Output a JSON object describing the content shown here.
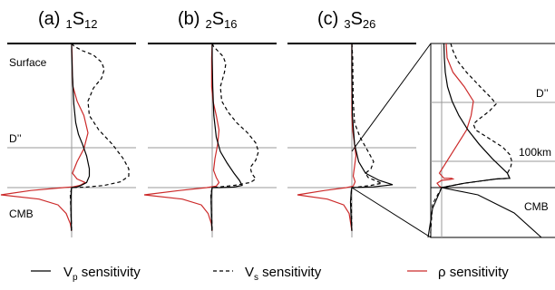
{
  "chart_data": {
    "type": "line",
    "panels": [
      {
        "id": "a",
        "letter": "(a)",
        "mode_pre": "1",
        "mode_main": "S",
        "mode_sub": "12",
        "series": {
          "vp": [
            [
              0,
              0
            ],
            [
              0,
              0.05
            ],
            [
              0.3,
              0.22
            ],
            [
              0.8,
              0.42
            ],
            [
              1.5,
              0.55
            ],
            [
              2.5,
              0.63
            ],
            [
              4.0,
              0.7
            ],
            [
              5.5,
              0.78
            ],
            [
              6.5,
              0.87
            ],
            [
              6.5,
              0.92
            ],
            [
              5.5,
              0.965
            ],
            [
              3.5,
              0.985
            ],
            [
              1.8,
              0.997
            ],
            [
              0.4,
              1.0
            ],
            [
              0,
              1.0
            ],
            [
              -0.1,
              1.01
            ],
            [
              -0.2,
              1.05
            ],
            [
              -0.3,
              1.12
            ],
            [
              -0.2,
              1.2
            ],
            [
              -0.1,
              1.3
            ]
          ],
          "vs": [
            [
              0,
              0
            ],
            [
              1,
              0.02
            ],
            [
              4,
              0.05
            ],
            [
              8,
              0.08
            ],
            [
              11,
              0.13
            ],
            [
              12,
              0.18
            ],
            [
              11,
              0.24
            ],
            [
              8,
              0.31
            ],
            [
              6,
              0.4
            ],
            [
              6.5,
              0.5
            ],
            [
              10,
              0.6
            ],
            [
              15,
              0.7
            ],
            [
              19,
              0.8
            ],
            [
              21,
              0.87
            ],
            [
              21,
              0.92
            ],
            [
              18,
              0.96
            ],
            [
              12,
              0.985
            ],
            [
              5,
              0.997
            ],
            [
              0,
              1.0
            ],
            [
              -0.5,
              1.05
            ],
            [
              -0.3,
              1.15
            ],
            [
              0,
              1.3
            ]
          ],
          "rho": [
            [
              0,
              0
            ],
            [
              0.2,
              0.1
            ],
            [
              0.2,
              0.2
            ],
            [
              0.5,
              0.3
            ],
            [
              2.0,
              0.4
            ],
            [
              4.5,
              0.5
            ],
            [
              6.0,
              0.62
            ],
            [
              4.5,
              0.73
            ],
            [
              2.0,
              0.82
            ],
            [
              0.3,
              0.9
            ],
            [
              2.0,
              0.94
            ],
            [
              5.0,
              0.965
            ],
            [
              3.0,
              0.985
            ],
            [
              0.5,
              0.995
            ],
            [
              -3,
              1.0
            ],
            [
              -15,
              1.02
            ],
            [
              -26,
              1.05
            ],
            [
              -12,
              1.08
            ],
            [
              -5,
              1.12
            ],
            [
              -2,
              1.18
            ],
            [
              -0.5,
              1.25
            ],
            [
              0,
              1.3
            ]
          ]
        }
      },
      {
        "id": "b",
        "letter": "(b)",
        "mode_pre": "2",
        "mode_main": "S",
        "mode_sub": "16",
        "series": {
          "vp": [
            [
              0,
              0
            ],
            [
              0,
              0.1
            ],
            [
              0.2,
              0.3
            ],
            [
              0.6,
              0.5
            ],
            [
              1.5,
              0.65
            ],
            [
              3.0,
              0.75
            ],
            [
              5.5,
              0.83
            ],
            [
              8.0,
              0.9
            ],
            [
              10.0,
              0.95
            ],
            [
              11.0,
              0.985
            ],
            [
              8.0,
              0.996
            ],
            [
              3.0,
              1.0
            ],
            [
              0,
              1.0
            ],
            [
              -0.2,
              1.02
            ],
            [
              -0.4,
              1.08
            ],
            [
              -0.3,
              1.18
            ],
            [
              -0.1,
              1.3
            ]
          ],
          "vs": [
            [
              0,
              0
            ],
            [
              0.5,
              0.02
            ],
            [
              2,
              0.05
            ],
            [
              4,
              0.09
            ],
            [
              5,
              0.14
            ],
            [
              4.5,
              0.2
            ],
            [
              3,
              0.3
            ],
            [
              3.5,
              0.4
            ],
            [
              6,
              0.48
            ],
            [
              9,
              0.55
            ],
            [
              13,
              0.62
            ],
            [
              16,
              0.69
            ],
            [
              17,
              0.75
            ],
            [
              16,
              0.81
            ],
            [
              14,
              0.86
            ],
            [
              14.5,
              0.9
            ],
            [
              16,
              0.94
            ],
            [
              14,
              0.965
            ],
            [
              8,
              0.985
            ],
            [
              2,
              0.997
            ],
            [
              0,
              1.0
            ],
            [
              -0.5,
              1.05
            ],
            [
              -0.3,
              1.15
            ],
            [
              0,
              1.3
            ]
          ],
          "rho": [
            [
              0,
              0
            ],
            [
              -0.2,
              0.1
            ],
            [
              -0.2,
              0.3
            ],
            [
              0.3,
              0.4
            ],
            [
              1.5,
              0.5
            ],
            [
              2.5,
              0.6
            ],
            [
              2.0,
              0.7
            ],
            [
              1.0,
              0.8
            ],
            [
              0.5,
              0.88
            ],
            [
              1.5,
              0.93
            ],
            [
              2.5,
              0.965
            ],
            [
              1.5,
              0.99
            ],
            [
              -2,
              1.0
            ],
            [
              -12,
              1.02
            ],
            [
              -25,
              1.05
            ],
            [
              -11,
              1.08
            ],
            [
              -4,
              1.12
            ],
            [
              -1.5,
              1.18
            ],
            [
              -0.3,
              1.25
            ],
            [
              0,
              1.3
            ]
          ]
        }
      },
      {
        "id": "c",
        "letter": "(c)",
        "mode_pre": "3",
        "mode_main": "S",
        "mode_sub": "26",
        "series": {
          "vp": [
            [
              0,
              0
            ],
            [
              0,
              0.2
            ],
            [
              0.2,
              0.5
            ],
            [
              1.0,
              0.7
            ],
            [
              2.5,
              0.82
            ],
            [
              5.0,
              0.9
            ],
            [
              10.0,
              0.95
            ],
            [
              15.0,
              0.98
            ],
            [
              8.0,
              0.995
            ],
            [
              0,
              1.0
            ],
            [
              -0.2,
              1.02
            ],
            [
              -0.5,
              1.1
            ],
            [
              -0.3,
              1.2
            ],
            [
              0,
              1.3
            ]
          ],
          "vs": [
            [
              0,
              0
            ],
            [
              0.3,
              0.1
            ],
            [
              0.5,
              0.4
            ],
            [
              1,
              0.55
            ],
            [
              3,
              0.65
            ],
            [
              6,
              0.75
            ],
            [
              8,
              0.82
            ],
            [
              7,
              0.87
            ],
            [
              5,
              0.9
            ],
            [
              6,
              0.93
            ],
            [
              9,
              0.955
            ],
            [
              11,
              0.97
            ],
            [
              7,
              0.985
            ],
            [
              2,
              0.997
            ],
            [
              0,
              1.0
            ],
            [
              -0.3,
              1.05
            ],
            [
              0,
              1.3
            ]
          ],
          "rho": [
            [
              0,
              0
            ],
            [
              0,
              0.5
            ],
            [
              0.3,
              0.6
            ],
            [
              1.0,
              0.7
            ],
            [
              1.5,
              0.78
            ],
            [
              1.0,
              0.85
            ],
            [
              0.5,
              0.92
            ],
            [
              1.2,
              0.96
            ],
            [
              0.5,
              0.99
            ],
            [
              -2,
              1.0
            ],
            [
              -10,
              1.02
            ],
            [
              -20,
              1.05
            ],
            [
              -9,
              1.08
            ],
            [
              -3,
              1.12
            ],
            [
              -1,
              1.18
            ],
            [
              0,
              1.3
            ]
          ]
        }
      }
    ],
    "zoom": {
      "series": {
        "vp": [
          [
            0.5,
            0.0
          ],
          [
            0.6,
            0.1
          ],
          [
            0.8,
            0.2
          ],
          [
            1.3,
            0.3
          ],
          [
            2.3,
            0.4
          ],
          [
            3.8,
            0.5
          ],
          [
            5.8,
            0.6
          ],
          [
            8.3,
            0.7
          ],
          [
            11.2,
            0.8
          ],
          [
            14.5,
            0.9
          ],
          [
            15,
            0.935
          ],
          [
            12,
            0.94
          ],
          [
            8.5,
            0.955
          ],
          [
            5,
            0.97
          ],
          [
            2.5,
            0.985
          ],
          [
            0.8,
            0.995
          ],
          [
            0,
            1.0
          ]
        ],
        "vs": [
          [
            2.0,
            0.0
          ],
          [
            2.5,
            0.05
          ],
          [
            3.5,
            0.12
          ],
          [
            5.5,
            0.2
          ],
          [
            8.5,
            0.3
          ],
          [
            11.0,
            0.38
          ],
          [
            12.0,
            0.42
          ],
          [
            10.5,
            0.47
          ],
          [
            8.0,
            0.53
          ],
          [
            7.0,
            0.56
          ],
          [
            7.5,
            0.6
          ],
          [
            10.5,
            0.66
          ],
          [
            13.5,
            0.72
          ],
          [
            15.0,
            0.77
          ],
          [
            15.5,
            0.82
          ],
          [
            15.2,
            0.86
          ],
          [
            14.5,
            0.9
          ],
          [
            15,
            0.935
          ],
          [
            12,
            0.94
          ],
          [
            8.5,
            0.955
          ],
          [
            5,
            0.97
          ],
          [
            2.5,
            0.985
          ],
          [
            0.8,
            0.995
          ],
          [
            0,
            1.0
          ]
        ],
        "rho": [
          [
            1.0,
            0.0
          ],
          [
            1.2,
            0.1
          ],
          [
            2.5,
            0.2
          ],
          [
            5.0,
            0.3
          ],
          [
            7.0,
            0.4
          ],
          [
            6.5,
            0.5
          ],
          [
            5.5,
            0.6
          ],
          [
            3.5,
            0.7
          ],
          [
            1.5,
            0.8
          ],
          [
            0.5,
            0.85
          ],
          [
            -0.5,
            0.9
          ],
          [
            0.5,
            0.935
          ],
          [
            2.2,
            0.935
          ],
          [
            2.5,
            0.94
          ],
          [
            1.5,
            0.945
          ],
          [
            0,
            0.95
          ],
          [
            -1,
            0.97
          ],
          [
            -0.5,
            0.99
          ],
          [
            0,
            1.0
          ]
        ]
      },
      "labels": {
        "dpp": "D’’",
        "thickness": "100km",
        "cmb": "CMB"
      }
    },
    "depth_labels": {
      "surface": "Surface",
      "dpp": "D’’",
      "cmb": "CMB"
    },
    "legend": [
      {
        "key": "vp",
        "main": "V",
        "sub": "p",
        "text": " sensitivity",
        "color": "#000000",
        "dash": "solid"
      },
      {
        "key": "vs",
        "main": "V",
        "sub": "s",
        "text": " sensitivity",
        "color": "#000000",
        "dash": "dashed"
      },
      {
        "key": "rho",
        "main": "ρ",
        "sub": "",
        "text": " sensitivity",
        "color": "#cc2a2a",
        "dash": "solid"
      }
    ],
    "colors": {
      "vp": "#000000",
      "vs": "#000000",
      "rho": "#cc2a2a",
      "grid": "#999999"
    }
  }
}
